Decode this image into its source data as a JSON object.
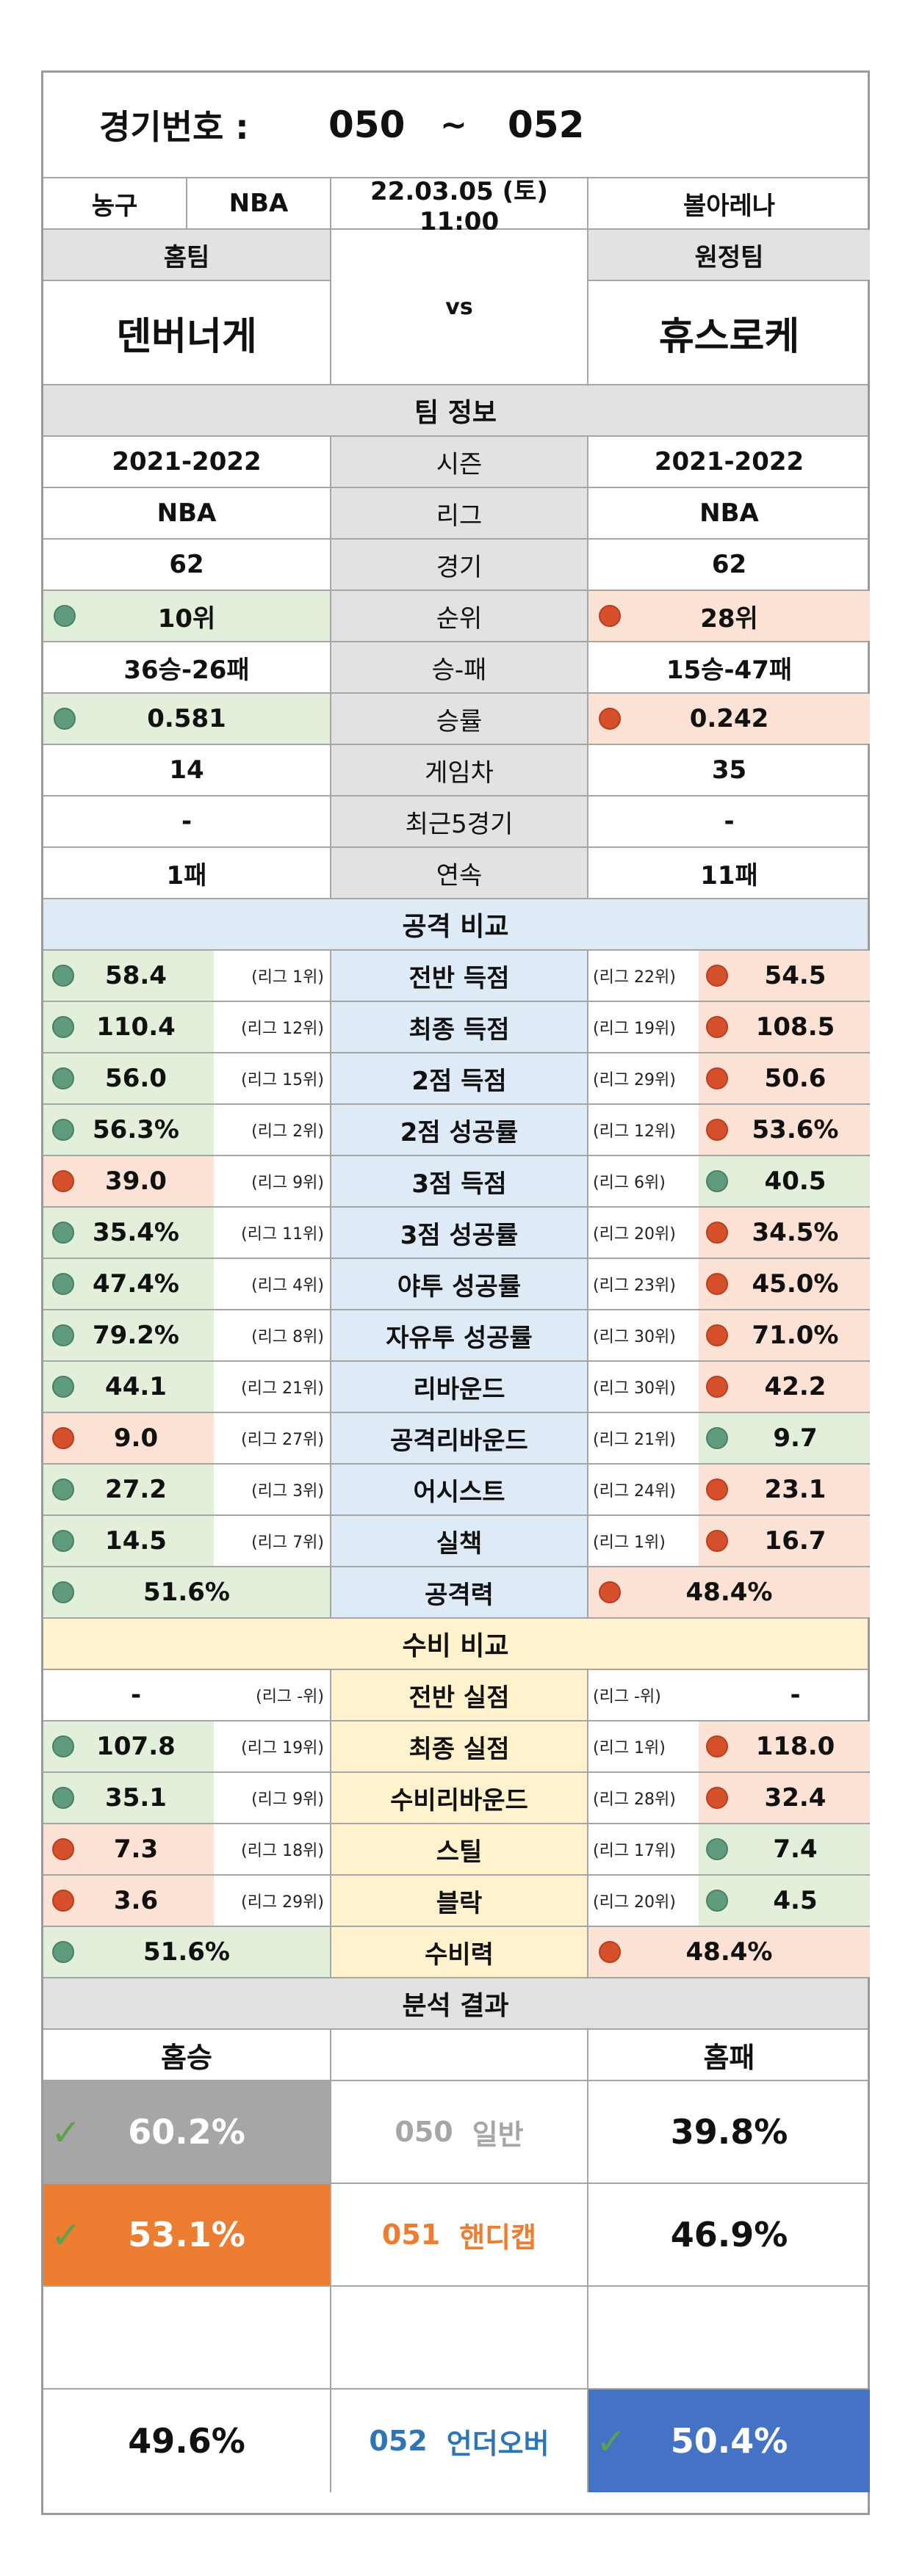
{
  "header": {
    "label": "경기번호 :",
    "from": "050",
    "tilde": "~",
    "to": "052"
  },
  "meta": {
    "sport": "농구",
    "league": "NBA",
    "datetime": "22.03.05 (토) 11:00",
    "venue": "볼아레나"
  },
  "teams": {
    "home_label": "홈팀",
    "away_label": "원정팀",
    "vs": "vs",
    "home_name": "덴버너게",
    "away_name": "휴스로케"
  },
  "team_info": {
    "title": "팀 정보",
    "rows": [
      {
        "label": "시즌",
        "home": "2021-2022",
        "away": "2021-2022",
        "home_mark": "",
        "away_mark": ""
      },
      {
        "label": "리그",
        "home": "NBA",
        "away": "NBA",
        "home_mark": "",
        "away_mark": ""
      },
      {
        "label": "경기",
        "home": "62",
        "away": "62",
        "home_mark": "",
        "away_mark": ""
      },
      {
        "label": "순위",
        "home": "10위",
        "away": "28위",
        "home_mark": "green",
        "away_mark": "red"
      },
      {
        "label": "승-패",
        "home": "36승-26패",
        "away": "15승-47패",
        "home_mark": "",
        "away_mark": ""
      },
      {
        "label": "승률",
        "home": "0.581",
        "away": "0.242",
        "home_mark": "green",
        "away_mark": "red"
      },
      {
        "label": "게임차",
        "home": "14",
        "away": "35",
        "home_mark": "",
        "away_mark": ""
      },
      {
        "label": "최근5경기",
        "home": "-",
        "away": "-",
        "home_mark": "",
        "away_mark": ""
      },
      {
        "label": "연속",
        "home": "1패",
        "away": "11패",
        "home_mark": "",
        "away_mark": ""
      }
    ]
  },
  "attack": {
    "title": "공격 비교",
    "rows": [
      {
        "label": "전반 득점",
        "home": "58.4",
        "home_rank": "(리그 1위)",
        "home_mark": "green",
        "away": "54.5",
        "away_rank": "(리그 22위)",
        "away_mark": "red"
      },
      {
        "label": "최종 득점",
        "home": "110.4",
        "home_rank": "(리그 12위)",
        "home_mark": "green",
        "away": "108.5",
        "away_rank": "(리그 19위)",
        "away_mark": "red"
      },
      {
        "label": "2점 득점",
        "home": "56.0",
        "home_rank": "(리그 15위)",
        "home_mark": "green",
        "away": "50.6",
        "away_rank": "(리그 29위)",
        "away_mark": "red"
      },
      {
        "label": "2점 성공률",
        "home": "56.3%",
        "home_rank": "(리그 2위)",
        "home_mark": "green",
        "away": "53.6%",
        "away_rank": "(리그 12위)",
        "away_mark": "red"
      },
      {
        "label": "3점 득점",
        "home": "39.0",
        "home_rank": "(리그 9위)",
        "home_mark": "red",
        "away": "40.5",
        "away_rank": "(리그 6위)",
        "away_mark": "green"
      },
      {
        "label": "3점 성공률",
        "home": "35.4%",
        "home_rank": "(리그 11위)",
        "home_mark": "green",
        "away": "34.5%",
        "away_rank": "(리그 20위)",
        "away_mark": "red"
      },
      {
        "label": "야투 성공률",
        "home": "47.4%",
        "home_rank": "(리그 4위)",
        "home_mark": "green",
        "away": "45.0%",
        "away_rank": "(리그 23위)",
        "away_mark": "red"
      },
      {
        "label": "자유투 성공률",
        "home": "79.2%",
        "home_rank": "(리그 8위)",
        "home_mark": "green",
        "away": "71.0%",
        "away_rank": "(리그 30위)",
        "away_mark": "red"
      },
      {
        "label": "리바운드",
        "home": "44.1",
        "home_rank": "(리그 21위)",
        "home_mark": "green",
        "away": "42.2",
        "away_rank": "(리그 30위)",
        "away_mark": "red"
      },
      {
        "label": "공격리바운드",
        "home": "9.0",
        "home_rank": "(리그 27위)",
        "home_mark": "red",
        "away": "9.7",
        "away_rank": "(리그 21위)",
        "away_mark": "green"
      },
      {
        "label": "어시스트",
        "home": "27.2",
        "home_rank": "(리그 3위)",
        "home_mark": "green",
        "away": "23.1",
        "away_rank": "(리그 24위)",
        "away_mark": "red"
      },
      {
        "label": "실책",
        "home": "14.5",
        "home_rank": "(리그 7위)",
        "home_mark": "green",
        "away": "16.7",
        "away_rank": "(리그 1위)",
        "away_mark": "red"
      }
    ],
    "total_label": "공격력",
    "total_home": "51.6%",
    "total_away": "48.4%"
  },
  "defense": {
    "title": "수비 비교",
    "rows": [
      {
        "label": "전반 실점",
        "home": "-",
        "home_rank": "(리그 -위)",
        "home_mark": "",
        "away": "-",
        "away_rank": "(리그 -위)",
        "away_mark": ""
      },
      {
        "label": "최종 실점",
        "home": "107.8",
        "home_rank": "(리그 19위)",
        "home_mark": "green",
        "away": "118.0",
        "away_rank": "(리그 1위)",
        "away_mark": "red"
      },
      {
        "label": "수비리바운드",
        "home": "35.1",
        "home_rank": "(리그 9위)",
        "home_mark": "green",
        "away": "32.4",
        "away_rank": "(리그 28위)",
        "away_mark": "red"
      },
      {
        "label": "스틸",
        "home": "7.3",
        "home_rank": "(리그 18위)",
        "home_mark": "red",
        "away": "7.4",
        "away_rank": "(리그 17위)",
        "away_mark": "green"
      },
      {
        "label": "블락",
        "home": "3.6",
        "home_rank": "(리그 29위)",
        "home_mark": "red",
        "away": "4.5",
        "away_rank": "(리그 20위)",
        "away_mark": "green"
      }
    ],
    "total_label": "수비력",
    "total_home": "51.6%",
    "total_away": "48.4%"
  },
  "analysis": {
    "title": "분석 결과",
    "col_home": "홈승",
    "col_away": "홈패",
    "check": "✓",
    "rows": [
      {
        "code": "050",
        "name": "일반",
        "home": "60.2%",
        "away": "39.8%",
        "winner": "home",
        "color": "#a6a6a6"
      },
      {
        "code": "051",
        "name": "핸디캡",
        "home": "53.1%",
        "away": "46.9%",
        "winner": "home",
        "color": "#ed7d31"
      },
      {
        "code": "052",
        "name": "언더오버",
        "home": "49.6%",
        "away": "50.4%",
        "winner": "away",
        "color": "#4472c4"
      }
    ]
  },
  "colors": {
    "green_bg": "#e2efda",
    "red_bg": "#fbe2d5",
    "blue_bg": "#deebf7",
    "yellow_bg": "#fff2cc",
    "gray_bg": "#e2e2e2"
  }
}
